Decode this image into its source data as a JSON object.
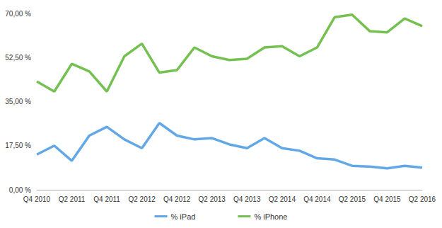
{
  "chart_data": {
    "type": "line",
    "categories": [
      "Q4 2010",
      null,
      "Q2 2011",
      null,
      "Q4 2011",
      null,
      "Q2 2012",
      null,
      "Q4 2012",
      null,
      "Q2 2013",
      null,
      "Q4 2013",
      null,
      "Q2 2014",
      null,
      "Q4 2014",
      null,
      "Q2 2015",
      null,
      "Q4 2015",
      null,
      "Q2 2016"
    ],
    "series": [
      {
        "name": "% iPad",
        "color": "#62a8e6",
        "values": [
          14,
          17.5,
          11.5,
          21.5,
          25,
          20,
          16.5,
          26.5,
          21.5,
          20,
          20.5,
          18,
          16.5,
          20.5,
          16.5,
          15.5,
          12.5,
          12,
          9.5,
          9.2,
          8.5,
          9.5,
          8.8
        ]
      },
      {
        "name": "% iPhone",
        "color": "#74c152",
        "values": [
          43,
          39,
          50,
          47,
          39,
          53,
          58,
          46.5,
          47.5,
          56.5,
          53,
          51.5,
          52,
          56.5,
          57,
          53,
          56.5,
          68.5,
          69.5,
          63,
          62.5,
          68,
          65
        ]
      }
    ],
    "ylim": [
      0,
      70
    ],
    "yticks": [
      {
        "value": 0,
        "label": "0,00 %"
      },
      {
        "value": 17.5,
        "label": "17,50 %"
      },
      {
        "value": 35,
        "label": "35,00 %"
      },
      {
        "value": 52.5,
        "label": "52,50 %"
      },
      {
        "value": 70,
        "label": "70,00 %"
      }
    ],
    "grid": false,
    "legend": "bottom"
  }
}
